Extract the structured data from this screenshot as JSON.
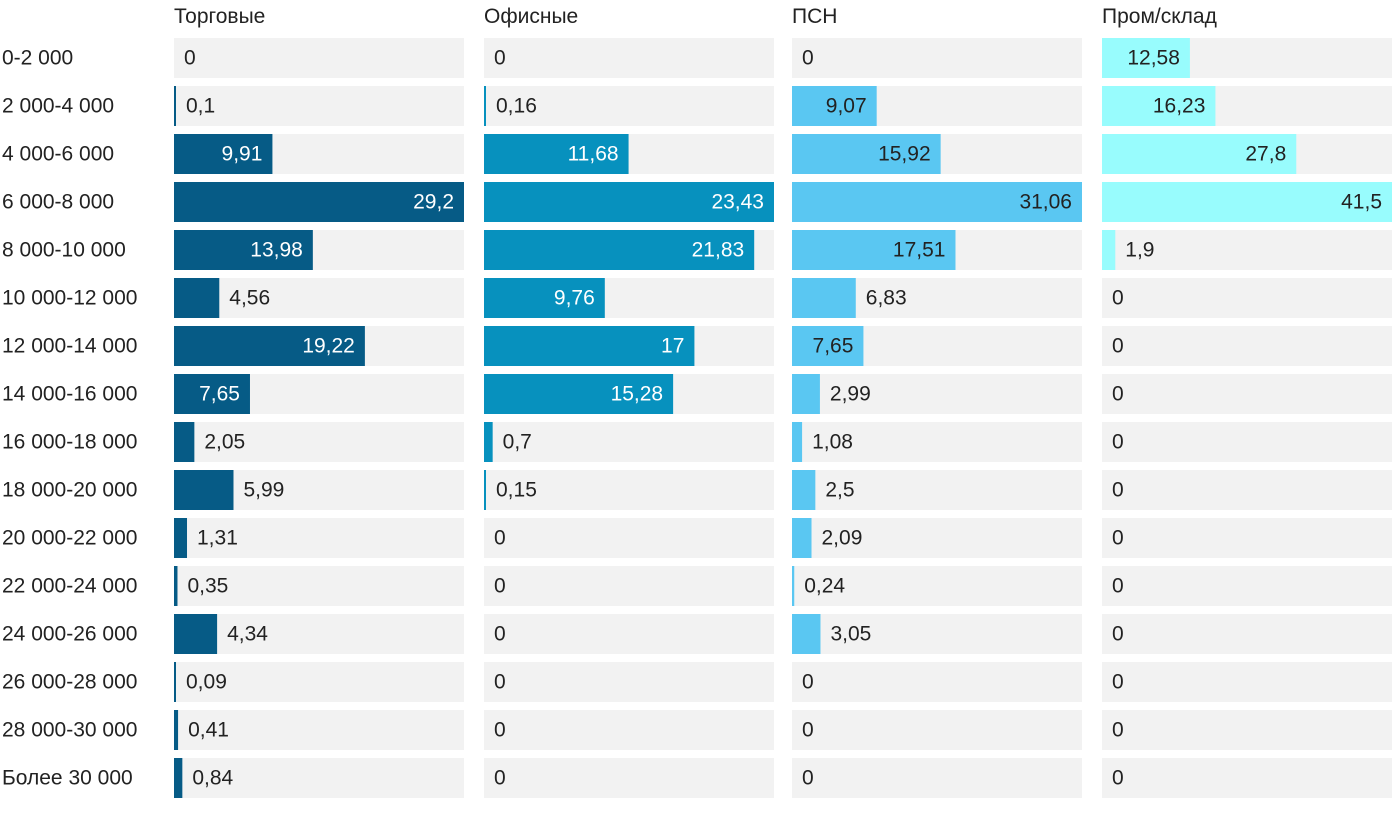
{
  "chart_data": {
    "type": "bar",
    "orientation": "horizontal",
    "layout": "small-multiples",
    "categories": [
      "0-2 000",
      "2 000-4 000",
      "4 000-6 000",
      "6 000-8 000",
      "8 000-10 000",
      "10 000-12 000",
      "12 000-14 000",
      "14 000-16 000",
      "16 000-18 000",
      "18 000-20 000",
      "20 000-22 000",
      "22 000-24 000",
      "24 000-26 000",
      "26 000-28 000",
      "28 000-30 000",
      "Более 30 000"
    ],
    "series": [
      {
        "name": "Торговые",
        "color": "#065b86",
        "max": 29.2,
        "values": [
          0,
          0.1,
          9.91,
          29.2,
          13.98,
          4.56,
          19.22,
          7.65,
          2.05,
          5.99,
          1.31,
          0.35,
          4.34,
          0.09,
          0.41,
          0.84
        ],
        "labels": [
          "0",
          "0,1",
          "9,91",
          "29,2",
          "13,98",
          "4,56",
          "19,22",
          "7,65",
          "2,05",
          "5,99",
          "1,31",
          "0,35",
          "4,34",
          "0,09",
          "0,41",
          "0,84"
        ]
      },
      {
        "name": "Офисные",
        "color": "#0791be",
        "max": 23.43,
        "values": [
          0,
          0.16,
          11.68,
          23.43,
          21.83,
          9.76,
          17,
          15.28,
          0.7,
          0.15,
          0,
          0,
          0,
          0,
          0,
          0
        ],
        "labels": [
          "0",
          "0,16",
          "11,68",
          "23,43",
          "21,83",
          "9,76",
          "17",
          "15,28",
          "0,7",
          "0,15",
          "0",
          "0",
          "0",
          "0",
          "0",
          "0"
        ]
      },
      {
        "name": "ПСН",
        "color": "#5ac7f2",
        "max": 31.06,
        "values": [
          0,
          9.07,
          15.92,
          31.06,
          17.51,
          6.83,
          7.65,
          2.99,
          1.08,
          2.5,
          2.09,
          0.24,
          3.05,
          0,
          0,
          0
        ],
        "labels": [
          "0",
          "9,07",
          "15,92",
          "31,06",
          "17,51",
          "6,83",
          "7,65",
          "2,99",
          "1,08",
          "2,5",
          "2,09",
          "0,24",
          "3,05",
          "0",
          "0",
          "0"
        ]
      },
      {
        "name": "Пром/склад",
        "color": "#98fcfd",
        "max": 41.5,
        "values": [
          12.58,
          16.23,
          27.8,
          41.5,
          1.9,
          0,
          0,
          0,
          0,
          0,
          0,
          0,
          0,
          0,
          0,
          0
        ],
        "labels": [
          "12,58",
          "16,23",
          "27,8",
          "41,5",
          "1,9",
          "0",
          "0",
          "0",
          "0",
          "0",
          "0",
          "0",
          "0",
          "0",
          "0",
          "0"
        ]
      }
    ],
    "track_color": "#f2f2f2"
  }
}
